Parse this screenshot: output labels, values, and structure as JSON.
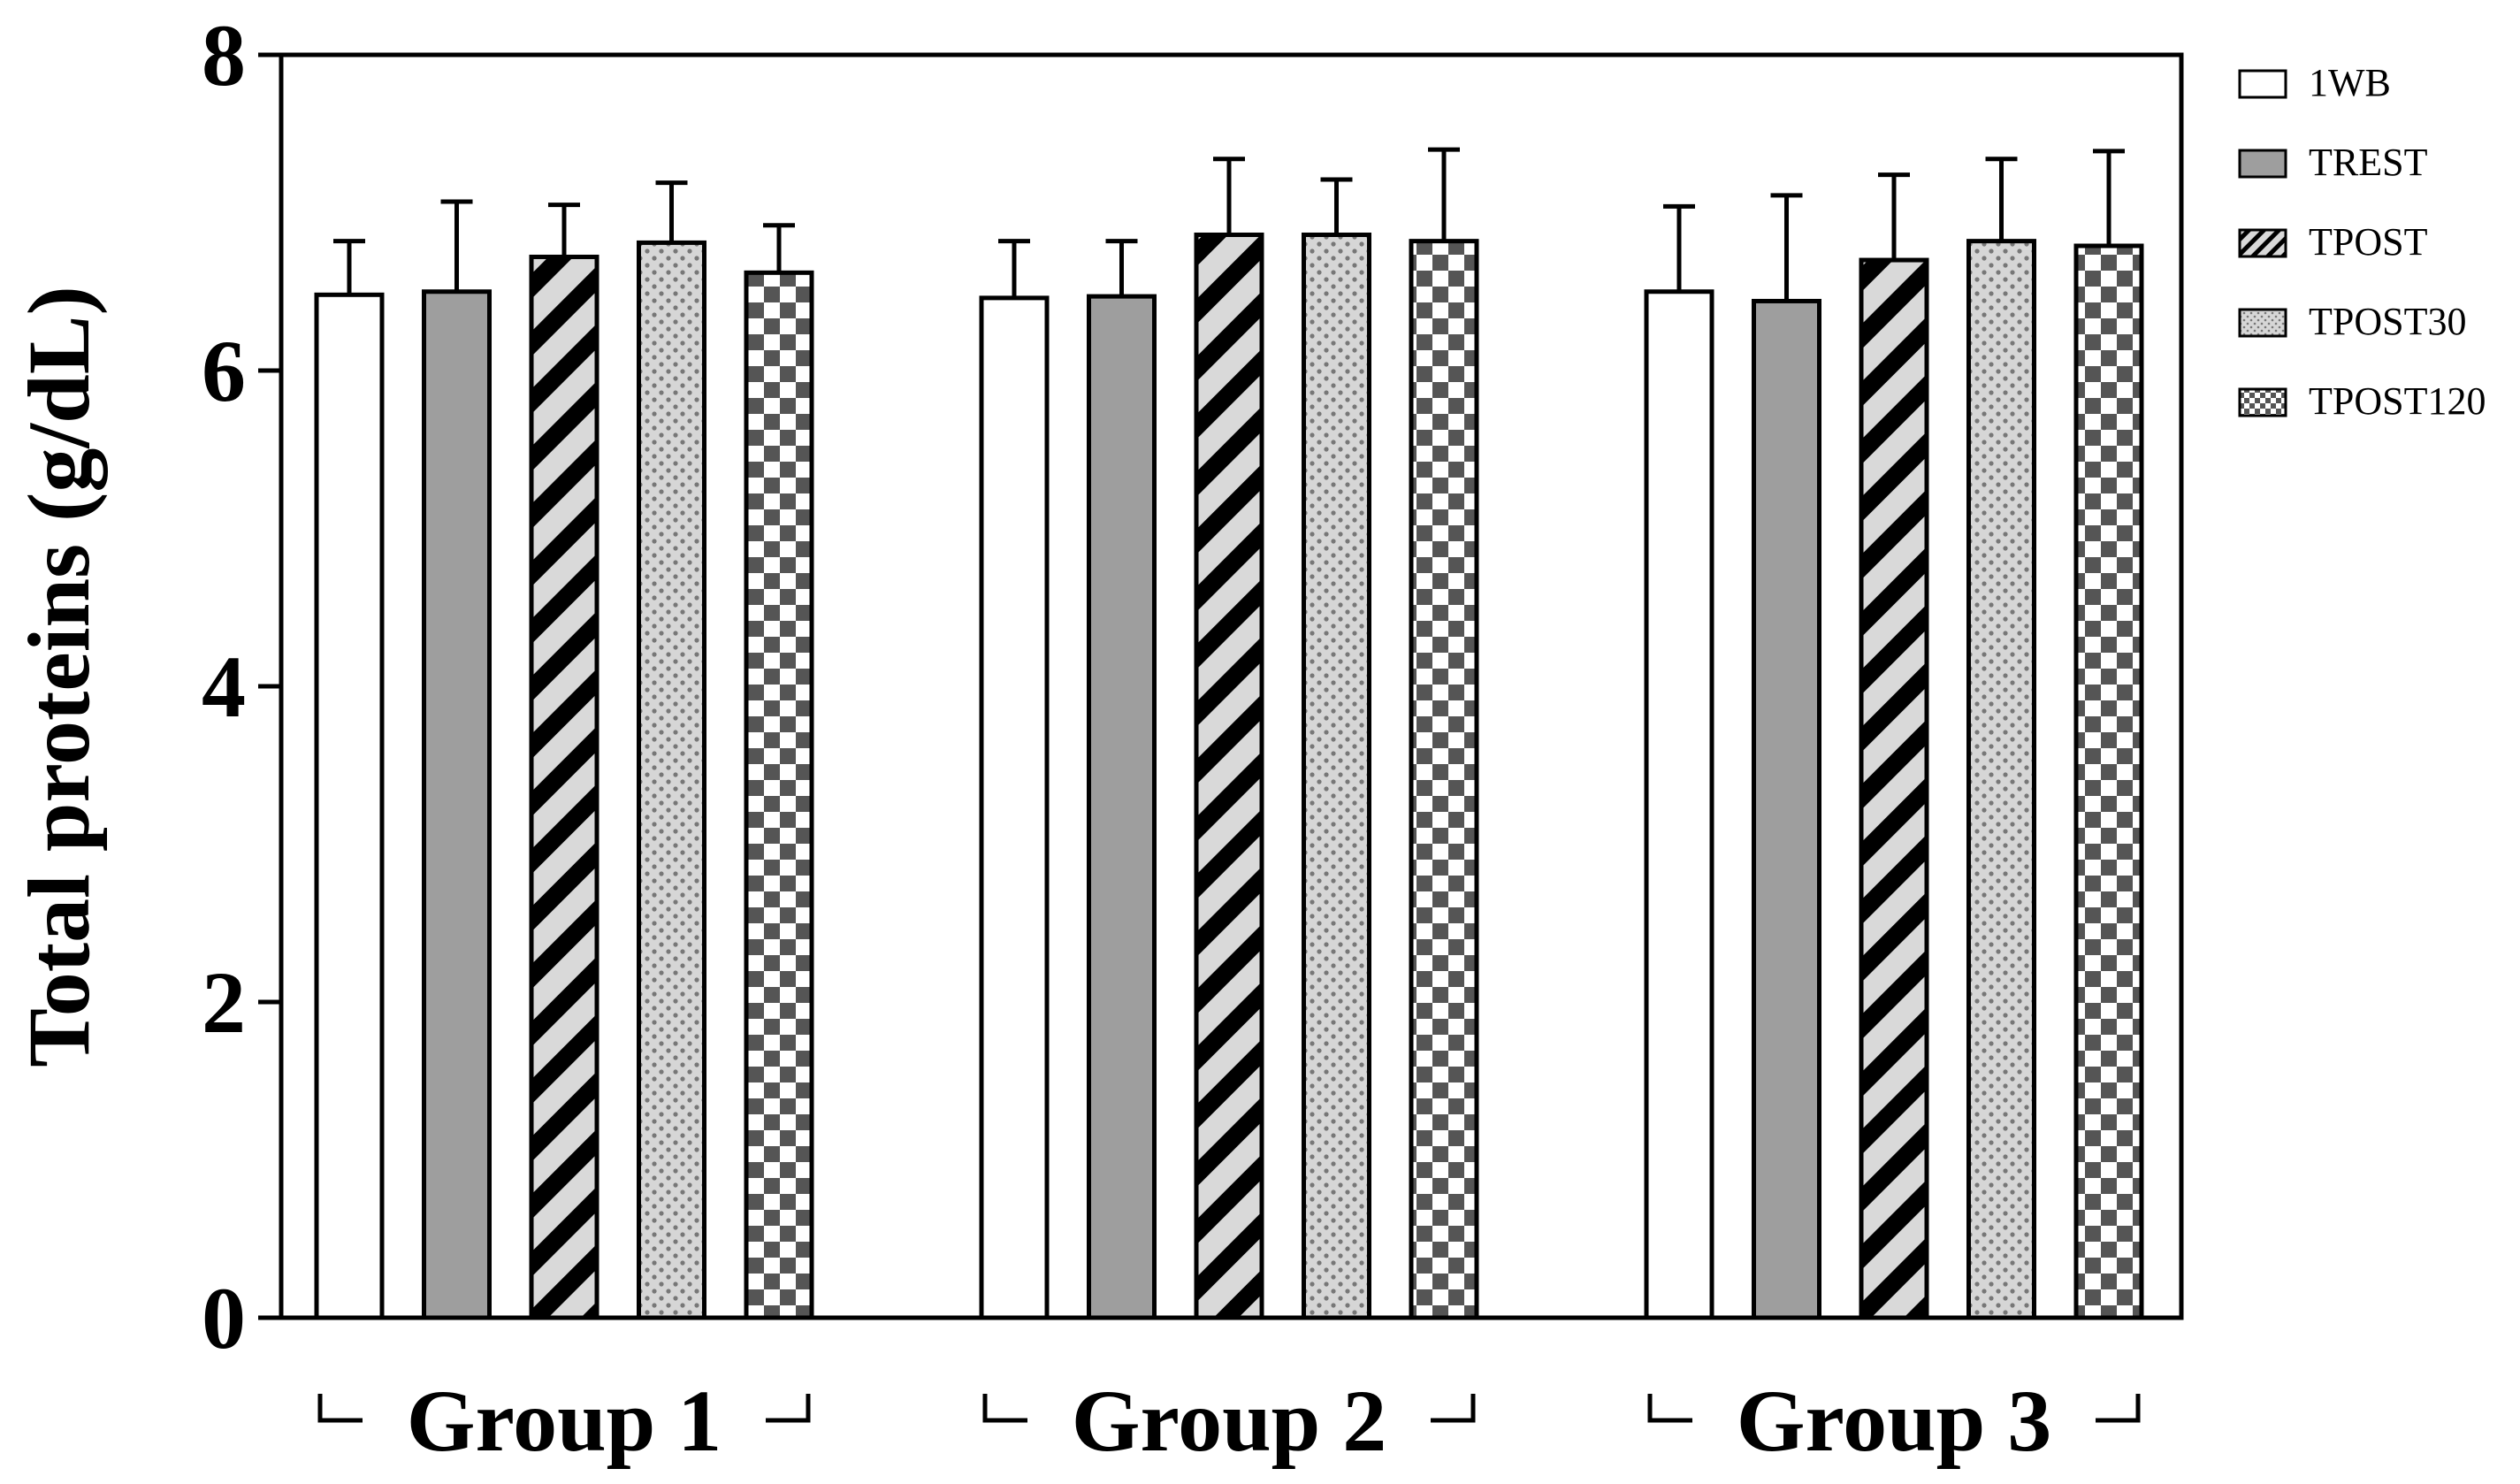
{
  "chart_data": {
    "type": "bar",
    "ylabel": "Total proteins (g/dL)",
    "xlabel": "",
    "ylim": [
      0,
      8
    ],
    "yticks": [
      0,
      2,
      4,
      6,
      8
    ],
    "ytick_labels": [
      "0",
      "2",
      "4",
      "6",
      "8"
    ],
    "grid": false,
    "legend_position": "top-right",
    "categories": [
      "Group 1",
      "Group 2",
      "Group 3"
    ],
    "series": [
      {
        "name": "1WB",
        "pattern": "white",
        "values": [
          6.48,
          6.46,
          6.5
        ],
        "errors": [
          0.34,
          0.36,
          0.54
        ]
      },
      {
        "name": "TREST",
        "pattern": "gray",
        "values": [
          6.5,
          6.47,
          6.44
        ],
        "errors": [
          0.57,
          0.35,
          0.67
        ]
      },
      {
        "name": "TPOST",
        "pattern": "stripes",
        "values": [
          6.72,
          6.86,
          6.7
        ],
        "errors": [
          0.33,
          0.48,
          0.54
        ]
      },
      {
        "name": "TPOST30",
        "pattern": "dots",
        "values": [
          6.81,
          6.86,
          6.82
        ],
        "errors": [
          0.38,
          0.35,
          0.52
        ]
      },
      {
        "name": "TPOST120",
        "pattern": "checker",
        "values": [
          6.62,
          6.82,
          6.79
        ],
        "errors": [
          0.3,
          0.58,
          0.6
        ]
      }
    ],
    "colors": {
      "white": "#ffffff",
      "gray": "#9e9e9e",
      "stripe_dark": "#000000",
      "stripe_light": "#d9d9d9",
      "dots_bg": "#d6d6d6",
      "dots_fg": "#777777",
      "checker_dark": "#555555",
      "checker_light": "#ffffff",
      "axis": "#000000"
    }
  }
}
